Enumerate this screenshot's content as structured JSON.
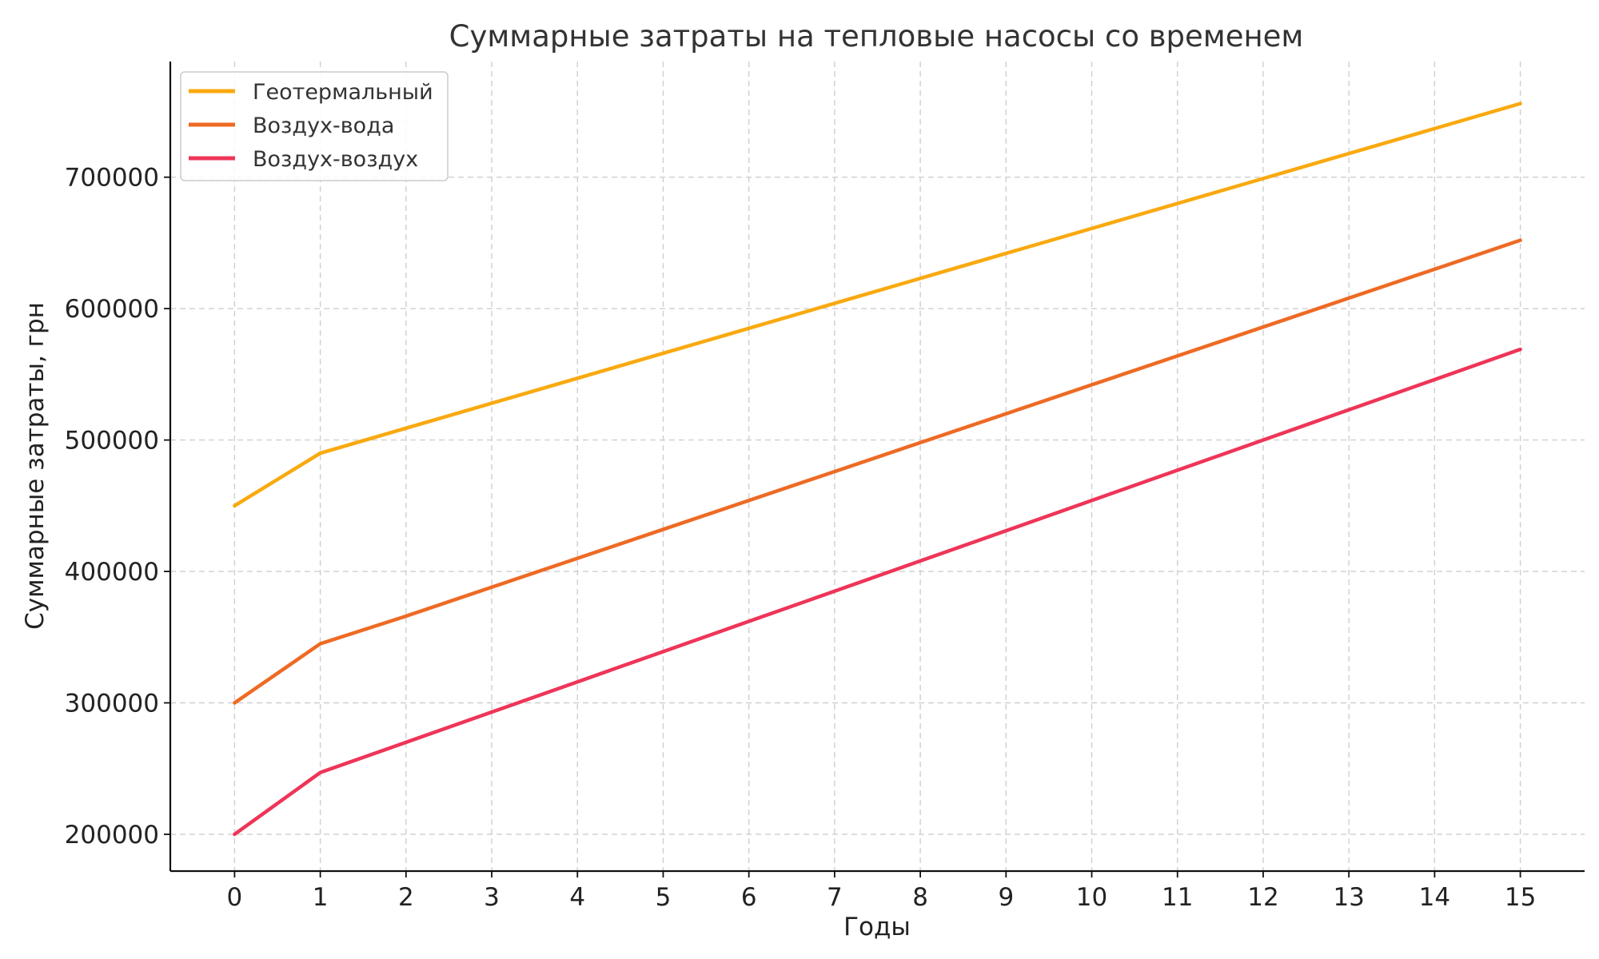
{
  "chart_data": {
    "type": "line",
    "title": "Суммарные затраты на тепловые насосы со временем",
    "xlabel": "Годы",
    "ylabel": "Суммарные затраты, грн",
    "x": [
      0,
      1,
      2,
      3,
      4,
      5,
      6,
      7,
      8,
      9,
      10,
      11,
      12,
      13,
      14,
      15
    ],
    "xlim": [
      -0.75,
      15.75
    ],
    "ylim": [
      172000,
      788000
    ],
    "yticks": [
      200000,
      300000,
      400000,
      500000,
      600000,
      700000
    ],
    "grid": true,
    "legend_position": "top-left",
    "series": [
      {
        "name": "Геотермальный",
        "color": "#F9A90F",
        "values": [
          450000,
          490000,
          509000,
          528000,
          547000,
          566000,
          585000,
          604000,
          623000,
          642000,
          661000,
          680000,
          699000,
          718000,
          737000,
          756000
        ]
      },
      {
        "name": "Воздух-вода",
        "color": "#EE6A24",
        "values": [
          300000,
          345000,
          366000,
          388000,
          410000,
          432000,
          454000,
          476000,
          498000,
          520000,
          542000,
          564000,
          586000,
          608000,
          630000,
          652000
        ]
      },
      {
        "name": "Воздух-воздух",
        "color": "#EE3558",
        "values": [
          200000,
          247000,
          270000,
          293000,
          316000,
          339000,
          362000,
          385000,
          408000,
          431000,
          454000,
          477000,
          500000,
          523000,
          546000,
          569000
        ]
      }
    ]
  }
}
